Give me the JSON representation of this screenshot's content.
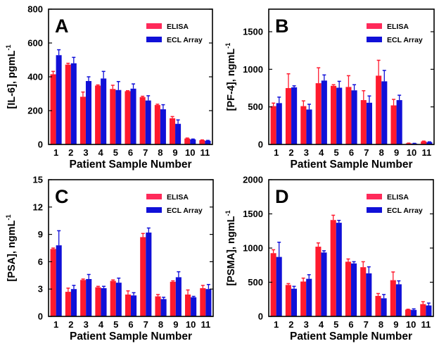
{
  "colors": {
    "elisa": "#ff1a2e",
    "ecl": "#1010d8",
    "elisa_legend": "#ff2a5a"
  },
  "chart_data": [
    {
      "type": "bar",
      "panel": "A",
      "title": "A",
      "xlabel": "Patient Sample Number",
      "ylabel": "[IL-6], pgmL",
      "ylabel_sup": "-1",
      "categories": [
        "1",
        "2",
        "3",
        "4",
        "5",
        "6",
        "7",
        "8",
        "9",
        "10",
        "11"
      ],
      "ylim": [
        0,
        800
      ],
      "yticks": [
        0,
        200,
        400,
        600,
        800
      ],
      "legend": "top-right",
      "series": [
        {
          "name": "ELISA",
          "values": [
            415,
            472,
            282,
            348,
            328,
            315,
            280,
            233,
            155,
            35,
            25
          ],
          "err_top": [
            432,
            480,
            310,
            352,
            350,
            318,
            285,
            238,
            165,
            38,
            27
          ]
        },
        {
          "name": "ECL Array",
          "values": [
            528,
            480,
            375,
            390,
            322,
            330,
            260,
            208,
            122,
            30,
            22
          ],
          "err_top": [
            560,
            515,
            400,
            432,
            372,
            358,
            288,
            235,
            145,
            32,
            24
          ]
        }
      ]
    },
    {
      "type": "bar",
      "panel": "B",
      "title": "B",
      "xlabel": "Patient Sample Number",
      "ylabel": "[PF-4], ngmL",
      "ylabel_sup": "-1",
      "categories": [
        "1",
        "2",
        "3",
        "4",
        "5",
        "6",
        "7",
        "8",
        "9",
        "10",
        "11"
      ],
      "ylim": [
        0,
        1800
      ],
      "yticks": [
        0,
        500,
        1000,
        1500
      ],
      "legend": "top-right",
      "series": [
        {
          "name": "ELISA",
          "values": [
            510,
            750,
            510,
            815,
            780,
            765,
            590,
            915,
            520,
            15,
            40
          ],
          "err_top": [
            550,
            940,
            580,
            1020,
            795,
            915,
            715,
            1120,
            600,
            18,
            45
          ]
        },
        {
          "name": "ECL Array",
          "values": [
            550,
            760,
            465,
            850,
            755,
            720,
            555,
            840,
            590,
            12,
            30
          ],
          "err_top": [
            630,
            780,
            535,
            925,
            840,
            795,
            645,
            985,
            655,
            15,
            35
          ]
        }
      ]
    },
    {
      "type": "bar",
      "panel": "C",
      "title": "C",
      "xlabel": "Patient Sample Number",
      "ylabel": "[PSA], ngmL",
      "ylabel_sup": "-1",
      "categories": [
        "1",
        "2",
        "3",
        "4",
        "5",
        "6",
        "7",
        "8",
        "9",
        "10",
        "11"
      ],
      "ylim": [
        0,
        15
      ],
      "yticks": [
        0,
        3,
        6,
        9,
        12,
        15
      ],
      "legend": "top-right",
      "series": [
        {
          "name": "ELISA",
          "values": [
            7.4,
            2.7,
            4.0,
            3.2,
            3.9,
            2.4,
            8.7,
            2.2,
            3.8,
            2.4,
            3.1
          ],
          "err_top": [
            7.5,
            3.1,
            4.1,
            3.3,
            4.0,
            2.8,
            9.1,
            2.4,
            3.9,
            2.9,
            3.4
          ]
        },
        {
          "name": "ECL Array",
          "values": [
            7.8,
            3.0,
            4.1,
            3.1,
            3.7,
            2.3,
            9.2,
            1.9,
            4.3,
            2.1,
            3.0
          ],
          "err_top": [
            9.4,
            3.4,
            4.6,
            3.3,
            4.2,
            2.6,
            9.7,
            2.1,
            4.9,
            2.2,
            3.5
          ]
        }
      ]
    },
    {
      "type": "bar",
      "panel": "D",
      "title": "D",
      "xlabel": "Patient Sample Number",
      "ylabel": "[PSMA], ngmL",
      "ylabel_sup": "-1",
      "categories": [
        "1",
        "2",
        "3",
        "4",
        "5",
        "6",
        "7",
        "8",
        "9",
        "10",
        "11"
      ],
      "ylim": [
        0,
        2000
      ],
      "yticks": [
        0,
        500,
        1000,
        1500,
        2000
      ],
      "legend": "top-right",
      "series": [
        {
          "name": "ELISA",
          "values": [
            925,
            460,
            510,
            1020,
            1410,
            800,
            720,
            300,
            530,
            100,
            180
          ],
          "err_top": [
            975,
            480,
            560,
            1075,
            1480,
            840,
            800,
            335,
            650,
            105,
            215
          ]
        },
        {
          "name": "ECL Array",
          "values": [
            870,
            405,
            550,
            935,
            1370,
            775,
            630,
            265,
            470,
            95,
            160
          ],
          "err_top": [
            1085,
            440,
            610,
            960,
            1405,
            800,
            725,
            320,
            520,
            110,
            195
          ]
        }
      ]
    }
  ]
}
